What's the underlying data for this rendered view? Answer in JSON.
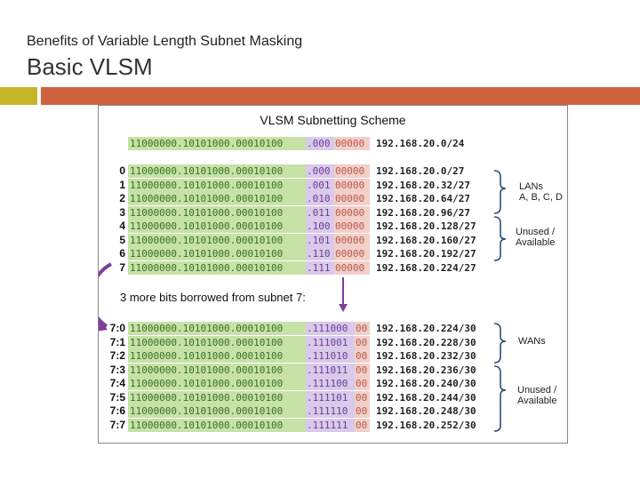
{
  "header": {
    "subtitle": "Benefits of Variable Length Subnet Masking",
    "title": "Basic VLSM"
  },
  "figure": {
    "title": "VLSM Subnetting Scheme",
    "base": {
      "green": "11000000.10101000.00010100",
      "purple": ".000",
      "pink": "00000",
      "addr": "192.168.20.0/24"
    },
    "subnets": [
      {
        "label": "0",
        "green": "11000000.10101000.00010100",
        "purple": ".000",
        "pink": "00000",
        "addr": "192.168.20.0/27"
      },
      {
        "label": "1",
        "green": "11000000.10101000.00010100",
        "purple": ".001",
        "pink": "00000",
        "addr": "192.168.20.32/27"
      },
      {
        "label": "2",
        "green": "11000000.10101000.00010100",
        "purple": ".010",
        "pink": "00000",
        "addr": "192.168.20.64/27"
      },
      {
        "label": "3",
        "green": "11000000.10101000.00010100",
        "purple": ".011",
        "pink": "00000",
        "addr": "192.168.20.96/27"
      },
      {
        "label": "4",
        "green": "11000000.10101000.00010100",
        "purple": ".100",
        "pink": "00000",
        "addr": "192.168.20.128/27"
      },
      {
        "label": "5",
        "green": "11000000.10101000.00010100",
        "purple": ".101",
        "pink": "00000",
        "addr": "192.168.20.160/27"
      },
      {
        "label": "6",
        "green": "11000000.10101000.00010100",
        "purple": ".110",
        "pink": "00000",
        "addr": "192.168.20.192/27"
      },
      {
        "label": "7",
        "green": "11000000.10101000.00010100",
        "purple": ".111",
        "pink": "00000",
        "addr": "192.168.20.224/27"
      }
    ],
    "borrow_text": "3 more bits borrowed from subnet 7:",
    "sub_subnets": [
      {
        "label": "7:0",
        "green": "11000000.10101000.00010100",
        "purple": ".111000",
        "pink": "00",
        "addr": "192.168.20.224/30"
      },
      {
        "label": "7:1",
        "green": "11000000.10101000.00010100",
        "purple": ".111001",
        "pink": "00",
        "addr": "192.168.20.228/30"
      },
      {
        "label": "7:2",
        "green": "11000000.10101000.00010100",
        "purple": ".111010",
        "pink": "00",
        "addr": "192.168.20.232/30"
      },
      {
        "label": "7:3",
        "green": "11000000.10101000.00010100",
        "purple": ".111011",
        "pink": "00",
        "addr": "192.168.20.236/30"
      },
      {
        "label": "7:4",
        "green": "11000000.10101000.00010100",
        "purple": ".111100",
        "pink": "00",
        "addr": "192.168.20.240/30"
      },
      {
        "label": "7:5",
        "green": "11000000.10101000.00010100",
        "purple": ".111101",
        "pink": "00",
        "addr": "192.168.20.244/30"
      },
      {
        "label": "7:6",
        "green": "11000000.10101000.00010100",
        "purple": ".111110",
        "pink": "00",
        "addr": "192.168.20.248/30"
      },
      {
        "label": "7:7",
        "green": "11000000.10101000.00010100",
        "purple": ".111111",
        "pink": "00",
        "addr": "192.168.20.252/30"
      }
    ],
    "groups": {
      "lans": "LANs\nA, B, C, D",
      "unused_top": "Unused /\nAvailable",
      "wans": "WANs",
      "unused_bottom": "Unused /\nAvailable"
    }
  },
  "colors": {
    "gold_bar": "#c8b62a",
    "orange_bar": "#d0633f",
    "arrow": "#7e3f9c"
  }
}
